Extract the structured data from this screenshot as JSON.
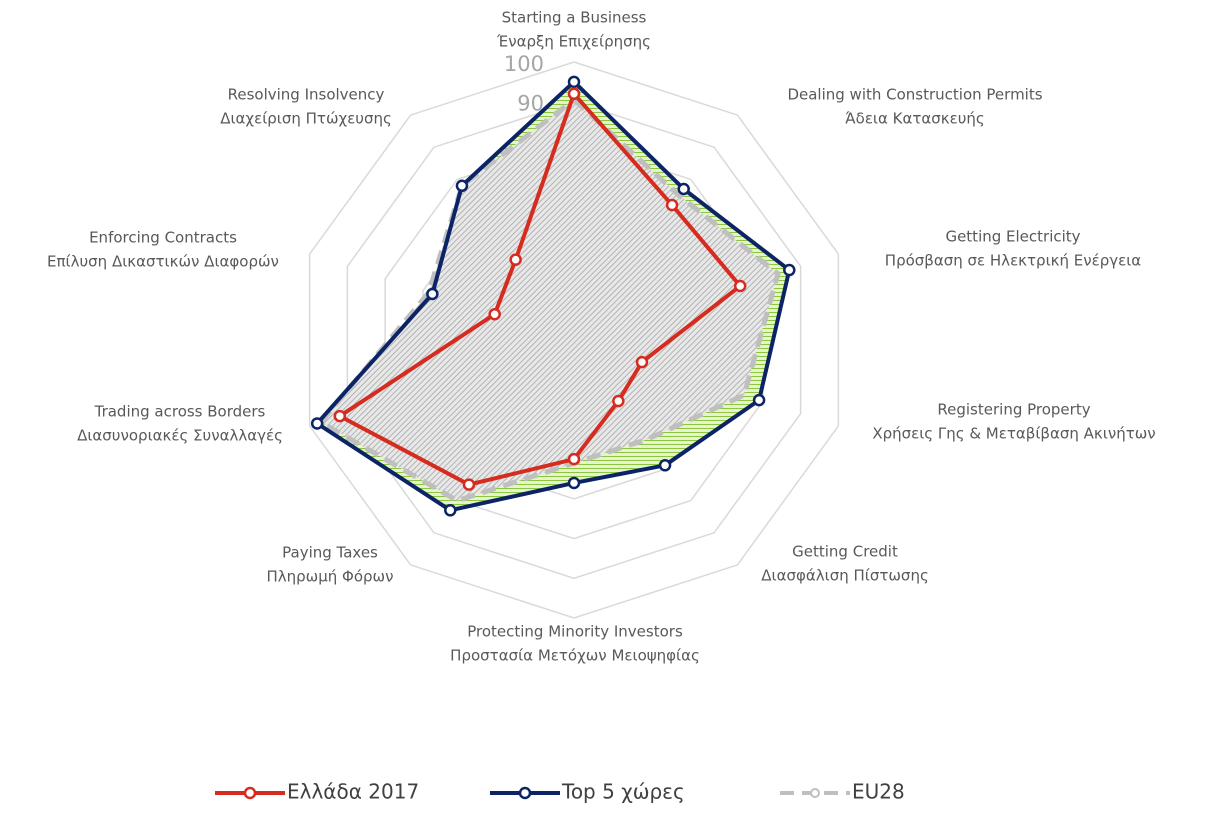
{
  "chart_data": {
    "type": "radar",
    "categories": [
      [
        "Starting a Business",
        "Έναρξη Επιχείρησης"
      ],
      [
        "Dealing with Construction Permits",
        "Άδεια Κατασκευής"
      ],
      [
        "Getting Electricity",
        "Πρόσβαση σε Ηλεκτρική Ενέργεια"
      ],
      [
        "Registering Property",
        "Χρήσεις Γης & Μεταβίβαση Ακινήτων"
      ],
      [
        "Getting Credit",
        "Διασφάλιση Πίστωσης"
      ],
      [
        "Protecting Minority Investors",
        "Προστασία Μετόχων Μειοψηφίας"
      ],
      [
        "Paying Taxes",
        "Πληρωμή Φόρων"
      ],
      [
        "Trading across Borders",
        "Διασυνοριακές Συναλλαγές"
      ],
      [
        "Enforcing Contracts",
        "Επίλυση Δικαστικών Διαφορών"
      ],
      [
        "Resolving Insolvency",
        "Διαχείριση Πτώχευσης"
      ]
    ],
    "series": [
      {
        "name": "Ελλάδα 2017",
        "color": "#d62b1f",
        "values": [
          92,
          72,
          74,
          48,
          49,
          60,
          75,
          92,
          51,
          55
        ]
      },
      {
        "name": "Top 5 χώρες",
        "color": "#0c2466",
        "values": [
          95,
          77,
          87,
          79,
          69,
          66,
          83,
          98,
          67.5,
          78
        ]
      },
      {
        "name": "EU28",
        "color": "#bfbfbf",
        "values": [
          90.5,
          75,
          84,
          75,
          61,
          61,
          80,
          97,
          68.5,
          78
        ]
      }
    ],
    "ylim": [
      30,
      100
    ],
    "yticks": [
      30,
      40,
      50,
      60,
      70,
      80,
      90,
      100
    ],
    "grid": true
  }
}
